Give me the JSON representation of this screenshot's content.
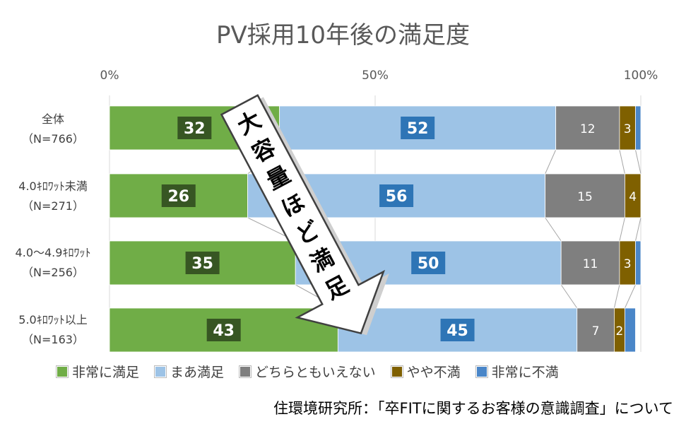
{
  "chart_data": {
    "type": "bar",
    "stacked": true,
    "orientation": "horizontal",
    "title": "PV採用10年後の満足度",
    "xlim": [
      0,
      100
    ],
    "xticks": [
      "0%",
      "50%",
      "100%"
    ],
    "categories": [
      {
        "label": "全体",
        "sub": "（N=766）"
      },
      {
        "label": "4.0ｷﾛﾜｯﾄ未満",
        "sub": "（N=271）"
      },
      {
        "label": "4.0～4.9ｷﾛﾜｯﾄ",
        "sub": "（N=256）"
      },
      {
        "label": "5.0ｷﾛﾜｯﾄ以上",
        "sub": "（N=163）"
      }
    ],
    "series": [
      {
        "name": "非常に満足",
        "color": "#70ad47",
        "label_bg": "#375623",
        "values": [
          32,
          26,
          35,
          43
        ],
        "labels": [
          "32",
          "26",
          "35",
          "43"
        ]
      },
      {
        "name": "まあ満足",
        "color": "#9dc3e6",
        "label_bg": "#2e75b6",
        "values": [
          52,
          56,
          50,
          45
        ],
        "labels": [
          "52",
          "56",
          "50",
          "45"
        ]
      },
      {
        "name": "どちらともいえない",
        "color": "#7f7f7f",
        "label_bg": "",
        "values": [
          12,
          15,
          11,
          7
        ],
        "labels": [
          "12",
          "15",
          "11",
          "7"
        ]
      },
      {
        "name": "やや不満",
        "color": "#7f6000",
        "label_bg": "",
        "values": [
          3,
          4,
          3,
          2
        ],
        "labels": [
          "3",
          "4",
          "3",
          "2"
        ]
      },
      {
        "name": "非常に不満",
        "color": "#4a86c8",
        "label_bg": "",
        "values": [
          1,
          0,
          1,
          2
        ],
        "labels": [
          "",
          "",
          "",
          ""
        ]
      }
    ],
    "legend_position": "bottom",
    "annotation": "大容量ほど満足"
  },
  "source_note": "住環境研究所：「卒FITに関するお客様の意識調査」について"
}
